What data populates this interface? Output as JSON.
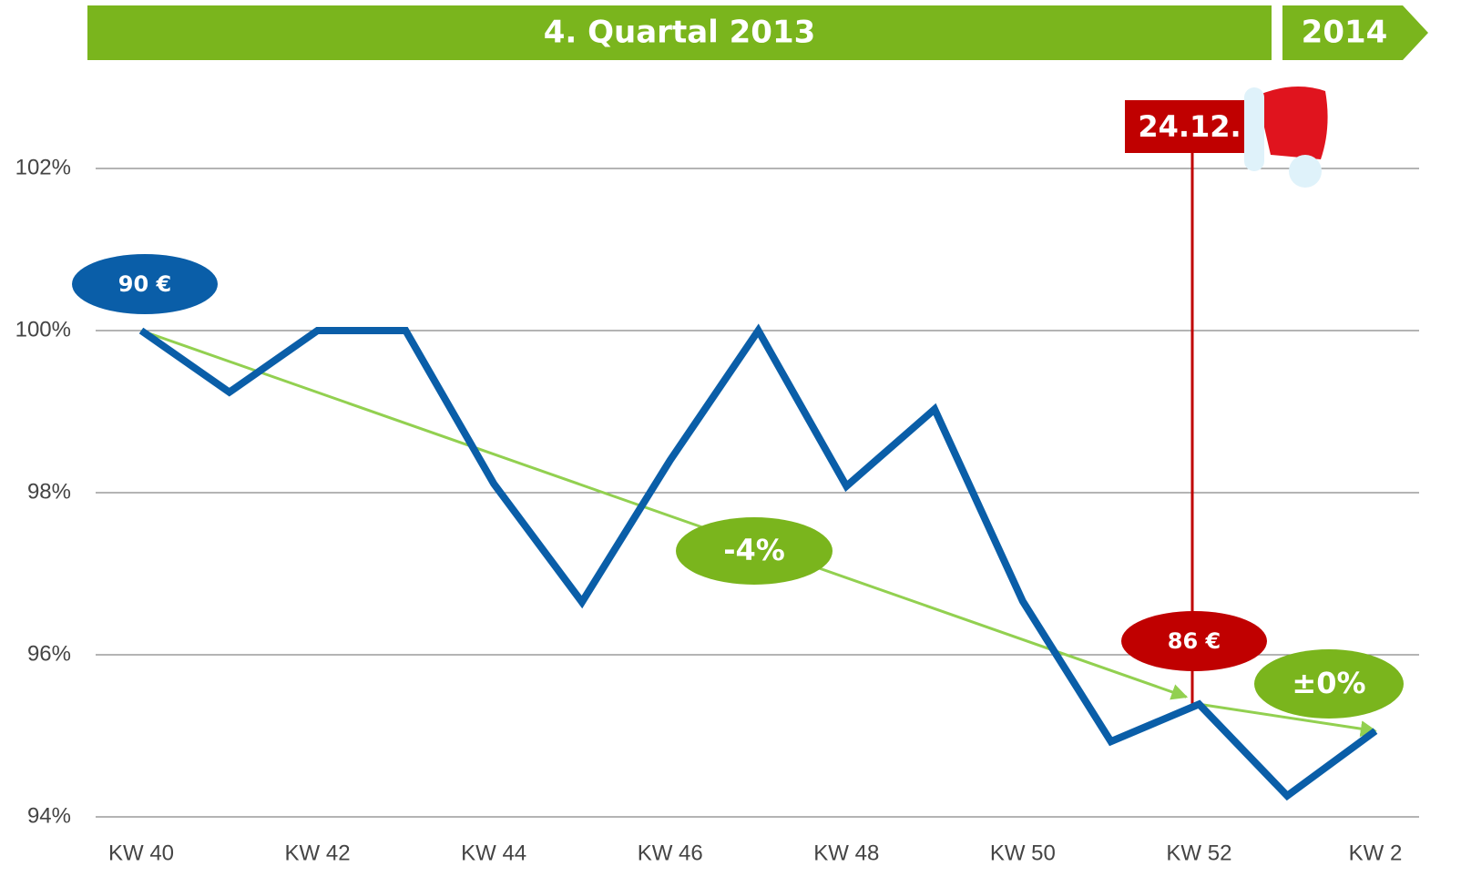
{
  "chart_data": {
    "type": "line",
    "periods": [
      "4. Quartal 2013",
      "2014"
    ],
    "categories": [
      "KW 40",
      null,
      "KW 42",
      null,
      "KW 44",
      null,
      "KW 46",
      null,
      "KW 48",
      null,
      "KW 50",
      null,
      "KW 52",
      null,
      "KW 2"
    ],
    "values": [
      100,
      99.24,
      100,
      100,
      98.11,
      96.65,
      98.4,
      100,
      98.08,
      99.03,
      96.66,
      94.93,
      95.39,
      94.26,
      95.06
    ],
    "color": "#0a5ea8",
    "ylim": [
      94,
      103
    ],
    "yticks": [
      {
        "value": 94,
        "label": "94%"
      },
      {
        "value": 96,
        "label": "96%"
      },
      {
        "value": 98,
        "label": "98%"
      },
      {
        "value": 100,
        "label": "100%"
      },
      {
        "value": 102,
        "label": "102%"
      }
    ],
    "grid": true,
    "annotations": [
      "90 €",
      "-4%",
      "86 €",
      "±0%",
      "24.12."
    ]
  }
}
